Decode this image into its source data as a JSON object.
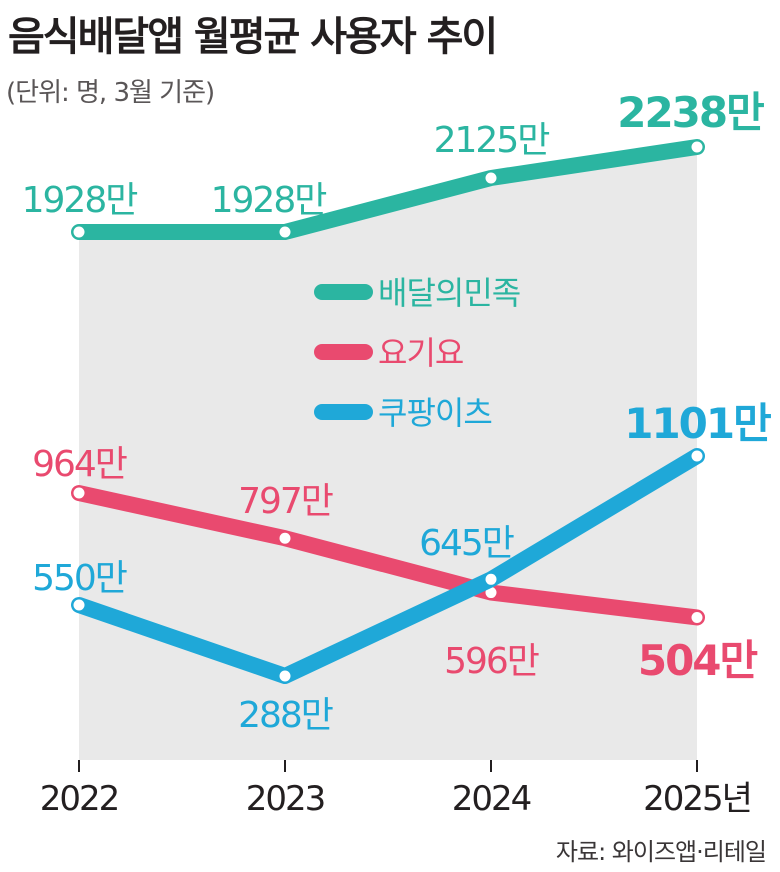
{
  "title": "음식배달앱 월평균 사용자 추이",
  "subtitle": "(단위: 명, 3월 기준)",
  "source": "자료: 와이즈앱·리테일",
  "chart_data": {
    "type": "line",
    "title": "음식배달앱 월평균 사용자 추이",
    "subtitle": "(단위: 명, 3월 기준)",
    "x": [
      "2022",
      "2023",
      "2024",
      "2025년"
    ],
    "ylim": [
      0,
      2400
    ],
    "grid": false,
    "legend_position": "center",
    "series": [
      {
        "name": "배달의민족",
        "color": "#2bb5a1",
        "values": [
          1928,
          1928,
          2125,
          2238
        ],
        "labels": [
          "1928만",
          "1928만",
          "2125만",
          "2238만"
        ]
      },
      {
        "name": "요기요",
        "color": "#e94a6f",
        "values": [
          964,
          797,
          596,
          504
        ],
        "labels": [
          "964만",
          "797만",
          "596만",
          "504만"
        ]
      },
      {
        "name": "쿠팡이츠",
        "color": "#1fa8d8",
        "values": [
          550,
          288,
          645,
          1101
        ],
        "labels": [
          "550만",
          "288만",
          "645만",
          "1101만"
        ]
      }
    ]
  }
}
